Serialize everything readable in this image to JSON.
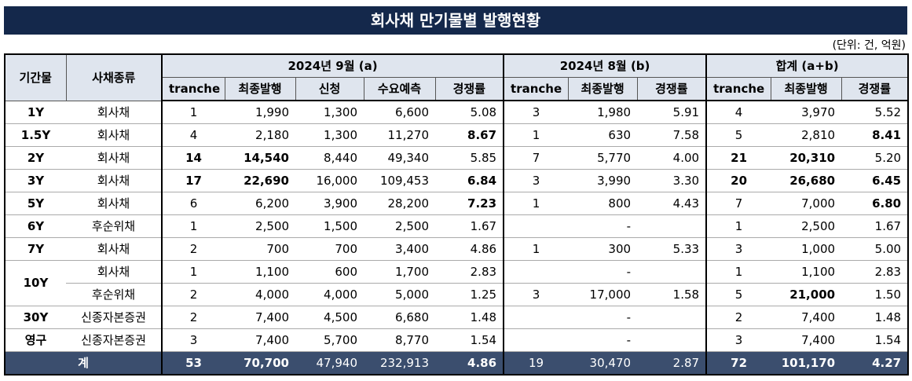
{
  "header": {
    "title": "회사채 만기물별 발행현황",
    "unit": "(단위: 건, 억원)"
  },
  "table": {
    "columns": {
      "period": "기간물",
      "kind": "사채종류",
      "groups": [
        {
          "label": "2024년 9월 (a)",
          "sub": [
            "tranche",
            "최종발행",
            "신청",
            "수요예측",
            "경쟁률"
          ]
        },
        {
          "label": "2024년 8월 (b)",
          "sub": [
            "tranche",
            "최종발행",
            "경쟁률"
          ]
        },
        {
          "label": "합계 (a+b)",
          "sub": [
            "tranche",
            "최종발행",
            "경쟁률"
          ]
        }
      ]
    },
    "rows": [
      {
        "period": "1Y",
        "kind": "회사채",
        "cells": [
          "1",
          "1,990",
          "1,300",
          "6,600",
          "5.08",
          "3",
          "1,980",
          "5.91",
          "4",
          "3,970",
          "5.52"
        ]
      },
      {
        "period": "1.5Y",
        "kind": "회사채",
        "cells": [
          "4",
          "2,180",
          "1,300",
          "11,270",
          "8.67",
          "1",
          "630",
          "7.58",
          "5",
          "2,810",
          "8.41"
        ]
      },
      {
        "period": "2Y",
        "kind": "회사채",
        "cells": [
          "14",
          "14,540",
          "8,440",
          "49,340",
          "5.85",
          "7",
          "5,770",
          "4.00",
          "21",
          "20,310",
          "5.20"
        ]
      },
      {
        "period": "3Y",
        "kind": "회사채",
        "cells": [
          "17",
          "22,690",
          "16,000",
          "109,453",
          "6.84",
          "3",
          "3,990",
          "3.30",
          "20",
          "26,680",
          "6.45"
        ]
      },
      {
        "period": "5Y",
        "kind": "회사채",
        "cells": [
          "6",
          "6,200",
          "3,900",
          "28,200",
          "7.23",
          "1",
          "800",
          "4.43",
          "7",
          "7,000",
          "6.80"
        ]
      },
      {
        "period": "6Y",
        "kind": "후순위채",
        "cells": [
          "1",
          "2,500",
          "1,500",
          "2,500",
          "1.67",
          null,
          "-",
          null,
          "1",
          "2,500",
          "1.67"
        ]
      },
      {
        "period": "7Y",
        "kind": "회사채",
        "cells": [
          "2",
          "700",
          "700",
          "3,400",
          "4.86",
          "1",
          "300",
          "5.33",
          "3",
          "1,000",
          "5.00"
        ]
      },
      {
        "period": "10Y",
        "kind": "회사채",
        "cells": [
          "1",
          "1,100",
          "600",
          "1,700",
          "2.83",
          null,
          "-",
          null,
          "1",
          "1,100",
          "2.83"
        ]
      },
      {
        "kind": "후순위채",
        "cells": [
          "2",
          "4,000",
          "4,000",
          "5,000",
          "1.25",
          "3",
          "17,000",
          "1.58",
          "5",
          "21,000",
          "1.50"
        ]
      },
      {
        "period": "30Y",
        "kind": "신종자본증권",
        "cells": [
          "2",
          "7,400",
          "4,500",
          "6,680",
          "1.48",
          null,
          "-",
          null,
          "2",
          "7,400",
          "1.48"
        ]
      },
      {
        "period": "영구",
        "kind": "신종자본증권",
        "cells": [
          "3",
          "7,400",
          "5,700",
          "8,770",
          "1.54",
          null,
          "-",
          null,
          "3",
          "7,400",
          "1.54"
        ]
      }
    ],
    "total": {
      "label": "계",
      "cells": [
        "53",
        "70,700",
        "47,940",
        "232,913",
        "4.86",
        "19",
        "30,470",
        "2.87",
        "72",
        "101,170",
        "4.27"
      ]
    }
  }
}
